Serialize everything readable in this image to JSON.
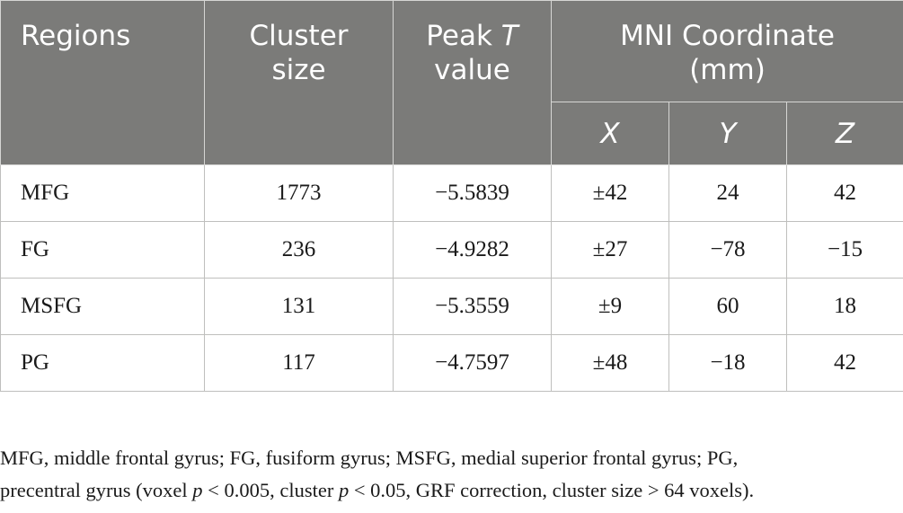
{
  "header": {
    "regions": "Regions",
    "cluster_size": [
      "Cluster",
      "size"
    ],
    "peak_t": {
      "prefix": "Peak ",
      "italic": "T",
      "suffix": "value"
    },
    "mni": [
      "MNI Coordinate",
      "(mm)"
    ],
    "axes": [
      "X",
      "Y",
      "Z"
    ]
  },
  "rows": [
    {
      "region": "MFG",
      "cluster": "1773",
      "peak": "−5.5839",
      "x": "±42",
      "y": "24",
      "z": "42"
    },
    {
      "region": "FG",
      "cluster": "236",
      "peak": "−4.9282",
      "x": "±27",
      "y": "−78",
      "z": "−15"
    },
    {
      "region": "MSFG",
      "cluster": "131",
      "peak": "−5.3559",
      "x": "±9",
      "y": "60",
      "z": "18"
    },
    {
      "region": "PG",
      "cluster": "117",
      "peak": "−4.7597",
      "x": "±48",
      "y": "−18",
      "z": "42"
    }
  ],
  "footnote": {
    "line1": "MFG, middle frontal gyrus; FG, fusiform gyrus; MSFG, medial superior frontal gyrus; PG,",
    "line2_a": "precentral gyrus (voxel ",
    "p1": "p",
    "line2_b": " < 0.005, cluster ",
    "p2": "p",
    "line2_c": " < 0.05, GRF correction, cluster size > 64 voxels)."
  }
}
